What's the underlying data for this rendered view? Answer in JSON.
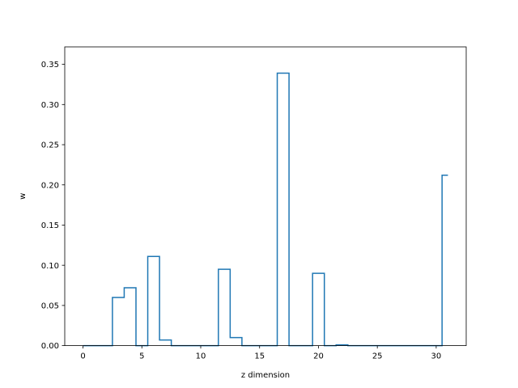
{
  "chart_data": {
    "type": "line",
    "drawstyle": "steps-mid",
    "title": "",
    "xlabel": "z dimension",
    "ylabel": "w",
    "xlim": [
      -1.55,
      32.55
    ],
    "ylim": [
      0,
      0.3717
    ],
    "x_ticks": [
      0,
      5,
      10,
      15,
      20,
      25,
      30
    ],
    "y_ticks": [
      0.0,
      0.05,
      0.1,
      0.15,
      0.2,
      0.25,
      0.3,
      0.35
    ],
    "x_tick_labels": [
      "0",
      "5",
      "10",
      "15",
      "20",
      "25",
      "30"
    ],
    "y_tick_labels": [
      "0.00",
      "0.05",
      "0.10",
      "0.15",
      "0.20",
      "0.25",
      "0.30",
      "0.35"
    ],
    "grid": false,
    "legend": "none",
    "series": [
      {
        "color": "#1f77b4",
        "x": [
          0,
          1,
          2,
          3,
          4,
          5,
          6,
          7,
          8,
          9,
          10,
          11,
          12,
          13,
          14,
          15,
          16,
          17,
          18,
          19,
          20,
          21,
          22,
          23,
          24,
          25,
          26,
          27,
          28,
          29,
          30,
          31
        ],
        "values": [
          0,
          0,
          0,
          0.06,
          0.072,
          0,
          0.111,
          0.007,
          0,
          0,
          0,
          0,
          0.095,
          0.01,
          0,
          0,
          0,
          0.339,
          0,
          0,
          0.09,
          0,
          0.001,
          0,
          0,
          0,
          0,
          0,
          0,
          0,
          0,
          0.212
        ]
      }
    ]
  }
}
